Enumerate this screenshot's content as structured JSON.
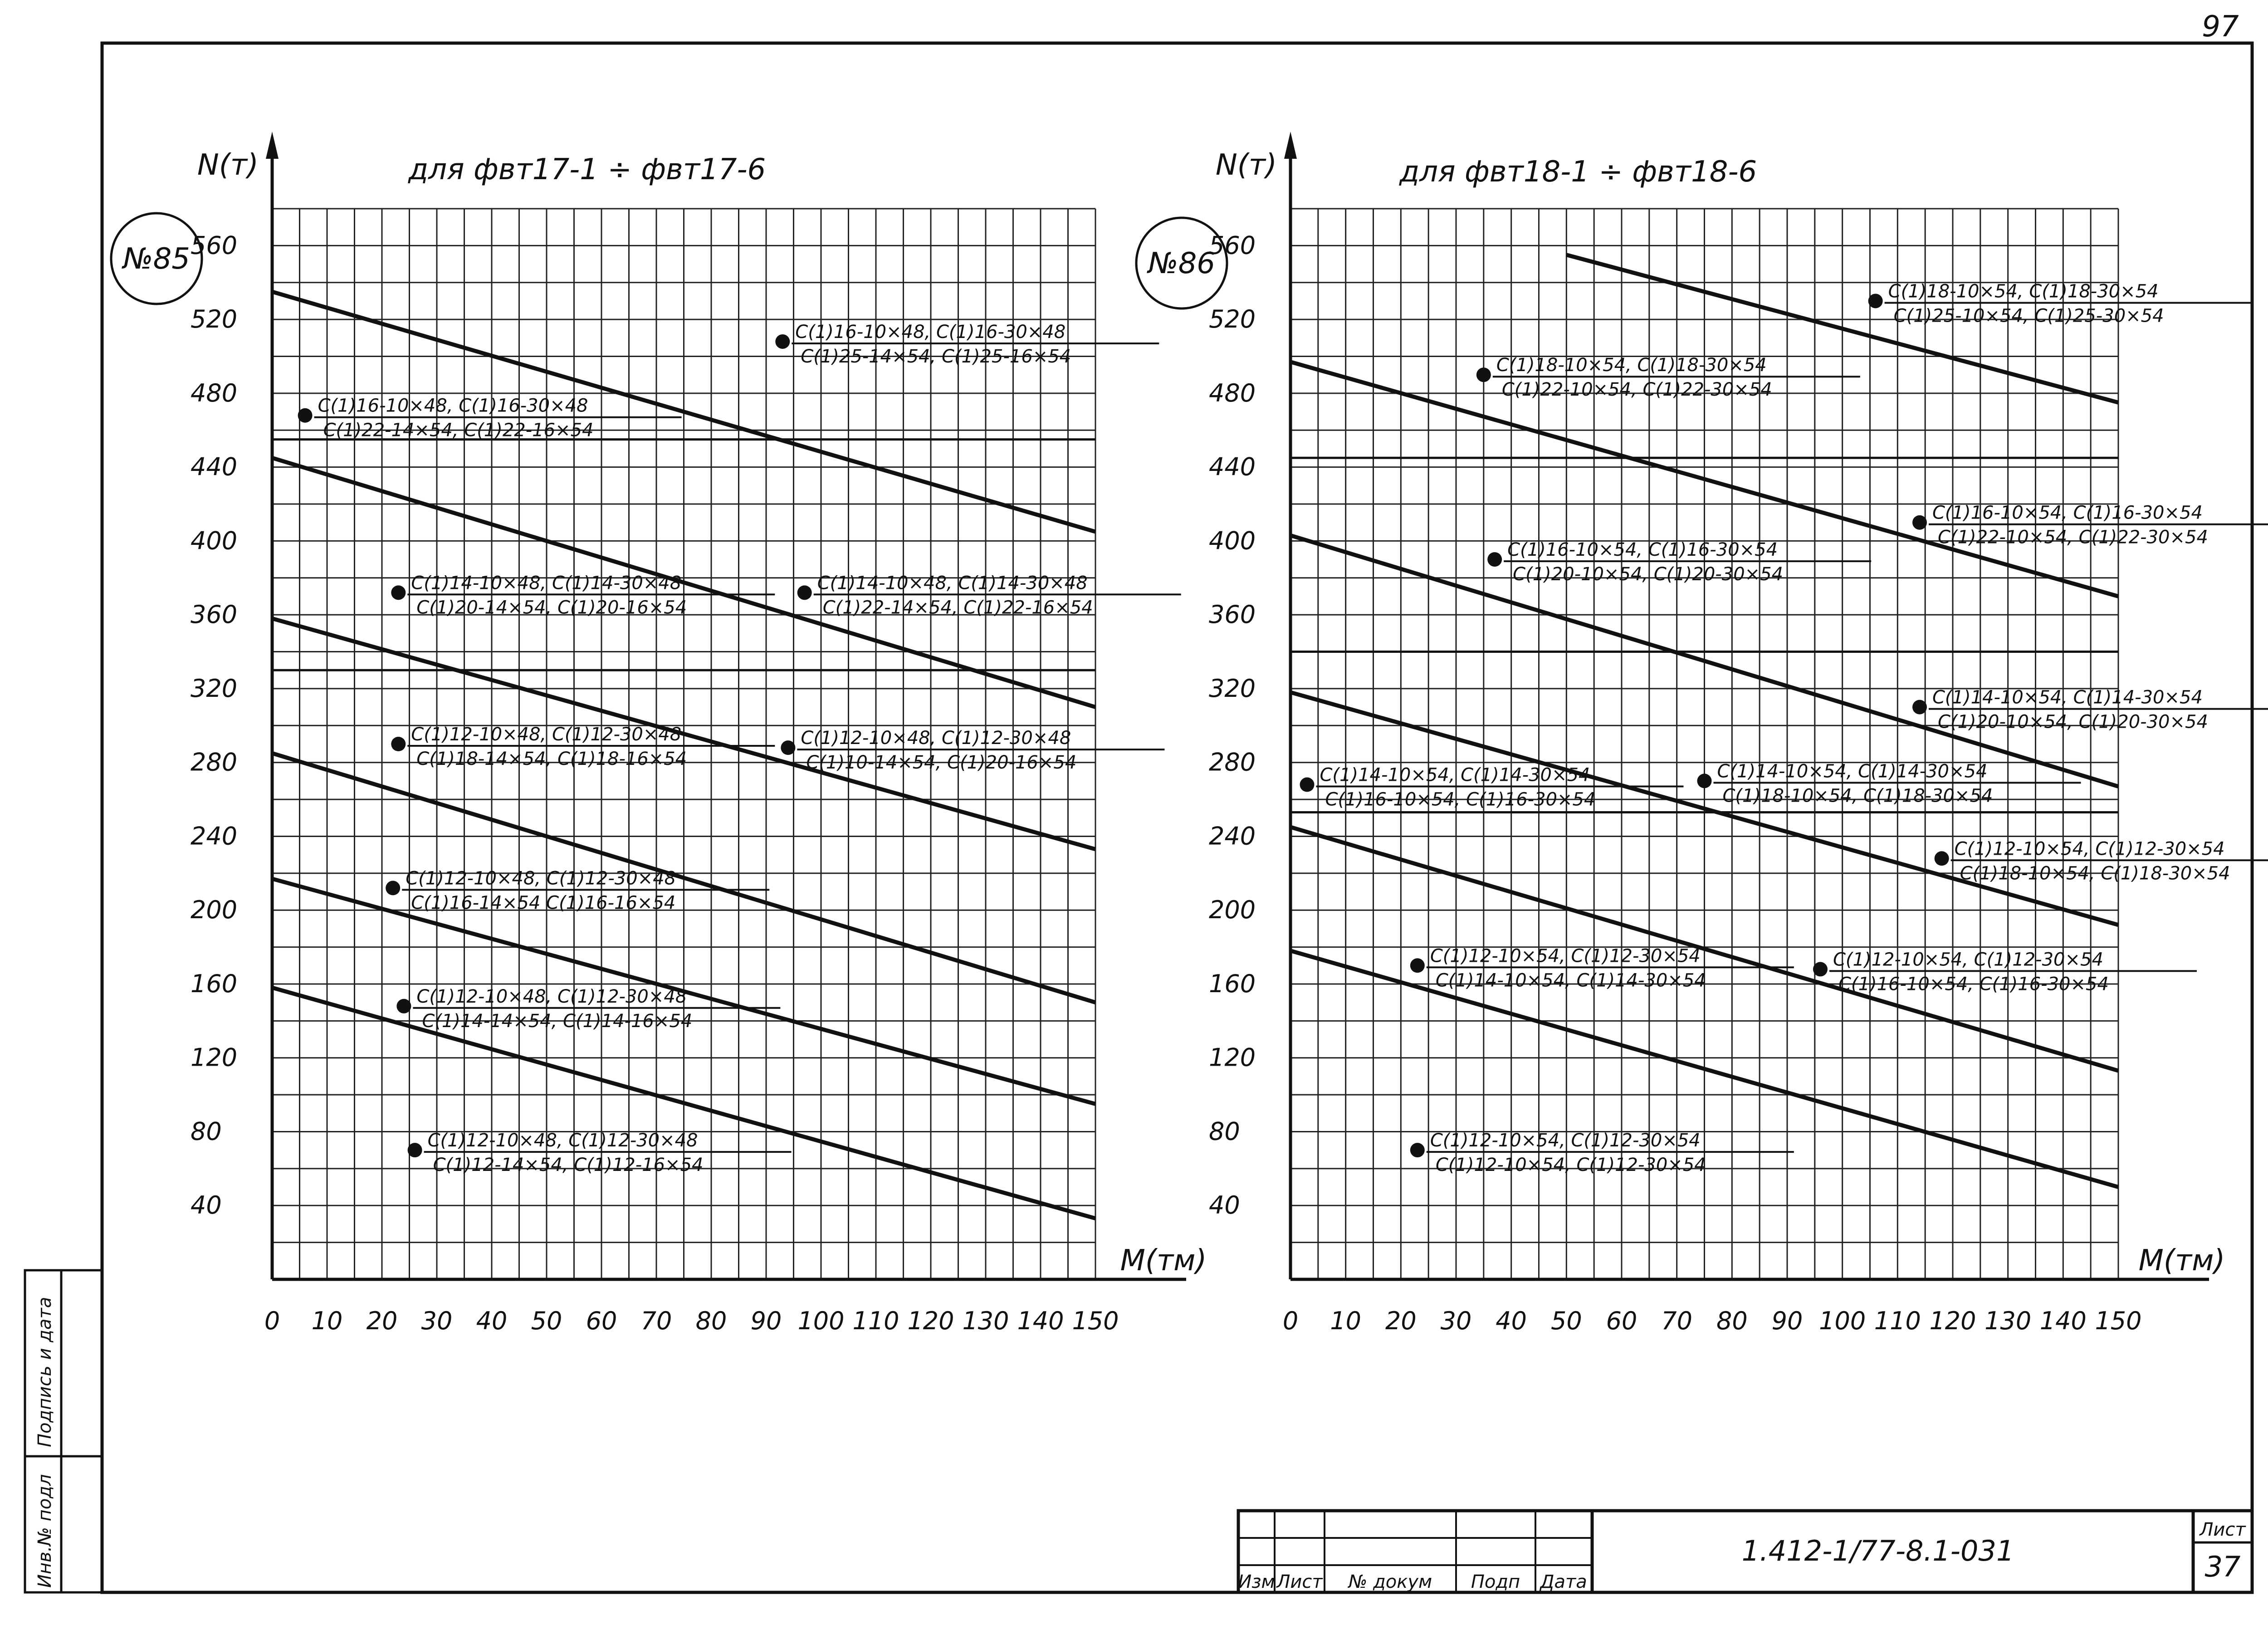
{
  "page_number_top": "97",
  "sheet_label": "Лист",
  "sheet_number": "37",
  "doc_code": "1.412-1/77-8.1-031",
  "title_block_headers": [
    "Изм",
    "Лист",
    "№ докум",
    "Подп",
    "Дата"
  ],
  "side_stamp": {
    "label1": "Подпись и дата",
    "label2": "Инв.№ подл"
  },
  "chart_data": [
    {
      "type": "line",
      "badge": "№85",
      "title": "для фвт17-1 ÷ фвт17-6",
      "xlabel": "M(тм)",
      "ylabel": "N(т)",
      "xlim": [
        0,
        150
      ],
      "ylim": [
        0,
        580
      ],
      "x_ticks": [
        "0",
        "10",
        "20",
        "30",
        "40",
        "50",
        "60",
        "70",
        "80",
        "90",
        "100",
        "110",
        "120",
        "130",
        "140",
        "150"
      ],
      "y_ticks": [
        "40",
        "80",
        "120",
        "160",
        "200",
        "240",
        "280",
        "320",
        "360",
        "400",
        "440",
        "480",
        "520",
        "560"
      ],
      "grid": true,
      "series": [
        {
          "x": [
            0,
            150
          ],
          "y": [
            535,
            405
          ]
        },
        {
          "x": [
            0,
            150
          ],
          "y": [
            445,
            310
          ]
        },
        {
          "x": [
            0,
            150
          ],
          "y": [
            358,
            233
          ]
        },
        {
          "x": [
            0,
            150
          ],
          "y": [
            285,
            150
          ]
        },
        {
          "x": [
            0,
            150
          ],
          "y": [
            217,
            95
          ]
        },
        {
          "x": [
            0,
            150
          ],
          "y": [
            158,
            33
          ]
        }
      ],
      "h_rules": [
        455,
        330
      ],
      "annotations": [
        {
          "x": 6,
          "y": 468,
          "top": "C(1)16-10×48, C(1)16-30×48",
          "bottom": "C(1)22-14×54, C(1)22-16×54"
        },
        {
          "x": 93,
          "y": 508,
          "top": "C(1)16-10×48, C(1)16-30×48",
          "bottom": "C(1)25-14×54, C(1)25-16×54"
        },
        {
          "x": 23,
          "y": 372,
          "top": "C(1)14-10×48, C(1)14-30×48",
          "bottom": "C(1)20-14×54, C(1)20-16×54"
        },
        {
          "x": 97,
          "y": 372,
          "top": "C(1)14-10×48, C(1)14-30×48",
          "bottom": "C(1)22-14×54, C(1)22-16×54"
        },
        {
          "x": 23,
          "y": 290,
          "top": "C(1)12-10×48, C(1)12-30×48",
          "bottom": "C(1)18-14×54, C(1)18-16×54"
        },
        {
          "x": 94,
          "y": 288,
          "top": "C(1)12-10×48, C(1)12-30×48",
          "bottom": "C(1)10-14×54, C(1)20-16×54"
        },
        {
          "x": 22,
          "y": 212,
          "top": "C(1)12-10×48, C(1)12-30×48",
          "bottom": "C(1)16-14×54 C(1)16-16×54"
        },
        {
          "x": 24,
          "y": 148,
          "top": "C(1)12-10×48, C(1)12-30×48",
          "bottom": "C(1)14-14×54, C(1)14-16×54"
        },
        {
          "x": 26,
          "y": 70,
          "top": "C(1)12-10×48, C(1)12-30×48",
          "bottom": "C(1)12-14×54, C(1)12-16×54"
        }
      ]
    },
    {
      "type": "line",
      "badge": "№86",
      "title": "для фвт18-1 ÷ фвт18-6",
      "xlabel": "M(тм)",
      "ylabel": "N(т)",
      "xlim": [
        0,
        150
      ],
      "ylim": [
        0,
        580
      ],
      "x_ticks": [
        "0",
        "10",
        "20",
        "30",
        "40",
        "50",
        "60",
        "70",
        "80",
        "90",
        "100",
        "110",
        "120",
        "130",
        "140",
        "150"
      ],
      "y_ticks": [
        "40",
        "80",
        "120",
        "160",
        "200",
        "240",
        "280",
        "320",
        "360",
        "400",
        "440",
        "480",
        "520",
        "560"
      ],
      "grid": true,
      "series": [
        {
          "x": [
            50,
            150
          ],
          "y": [
            555,
            475
          ]
        },
        {
          "x": [
            0,
            150
          ],
          "y": [
            497,
            370
          ]
        },
        {
          "x": [
            0,
            150
          ],
          "y": [
            403,
            267
          ]
        },
        {
          "x": [
            0,
            150
          ],
          "y": [
            318,
            192
          ]
        },
        {
          "x": [
            0,
            150
          ],
          "y": [
            245,
            113
          ]
        },
        {
          "x": [
            0,
            150
          ],
          "y": [
            178,
            50
          ]
        }
      ],
      "h_rules": [
        445,
        340,
        253
      ],
      "annotations": [
        {
          "x": 106,
          "y": 530,
          "top": "C(1)18-10×54, C(1)18-30×54",
          "bottom": "C(1)25-10×54, C(1)25-30×54"
        },
        {
          "x": 35,
          "y": 490,
          "top": "C(1)18-10×54, C(1)18-30×54",
          "bottom": "C(1)22-10×54, C(1)22-30×54"
        },
        {
          "x": 114,
          "y": 410,
          "top": "C(1)16-10×54, C(1)16-30×54",
          "bottom": "C(1)22-10×54, C(1)22-30×54"
        },
        {
          "x": 37,
          "y": 390,
          "top": "C(1)16-10×54, C(1)16-30×54",
          "bottom": "C(1)20-10×54, C(1)20-30×54"
        },
        {
          "x": 114,
          "y": 310,
          "top": "C(1)14-10×54, C(1)14-30×54",
          "bottom": "C(1)20-10×54, C(1)20-30×54"
        },
        {
          "x": 3,
          "y": 268,
          "top": "C(1)14-10×54, C(1)14-30×54",
          "bottom": "C(1)16-10×54, C(1)16-30×54"
        },
        {
          "x": 75,
          "y": 270,
          "top": "C(1)14-10×54, C(1)14-30×54",
          "bottom": "C(1)18-10×54, C(1)18-30×54"
        },
        {
          "x": 118,
          "y": 228,
          "top": "C(1)12-10×54, C(1)12-30×54",
          "bottom": "C(1)18-10×54, C(1)18-30×54"
        },
        {
          "x": 23,
          "y": 170,
          "top": "C(1)12-10×54, C(1)12-30×54",
          "bottom": "C(1)14-10×54, C(1)14-30×54"
        },
        {
          "x": 96,
          "y": 168,
          "top": "C(1)12-10×54, C(1)12-30×54",
          "bottom": "C(1)16-10×54, C(1)16-30×54"
        },
        {
          "x": 23,
          "y": 70,
          "top": "C(1)12-10×54, C(1)12-30×54",
          "bottom": "C(1)12-10×54, C(1)12-30×54"
        }
      ]
    }
  ]
}
